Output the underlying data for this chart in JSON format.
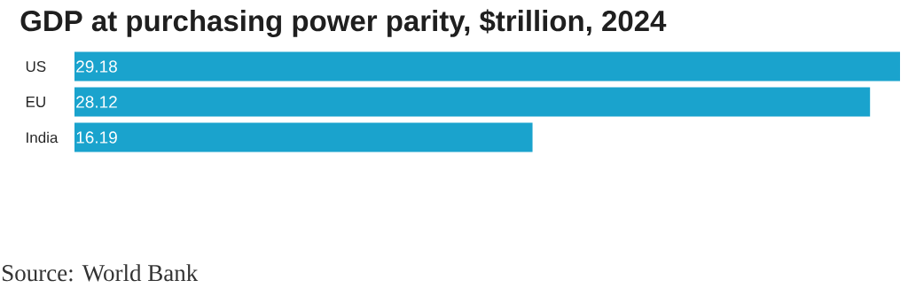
{
  "chart_data": {
    "type": "bar",
    "orientation": "horizontal",
    "title": "GDP at purchasing power parity, $trillion, 2024",
    "categories": [
      "US",
      "EU",
      "India"
    ],
    "values": [
      29.18,
      28.12,
      16.19
    ],
    "color": "#1aa3cd",
    "data_labels": true,
    "annotations": [
      "Source: World Bank"
    ]
  }
}
